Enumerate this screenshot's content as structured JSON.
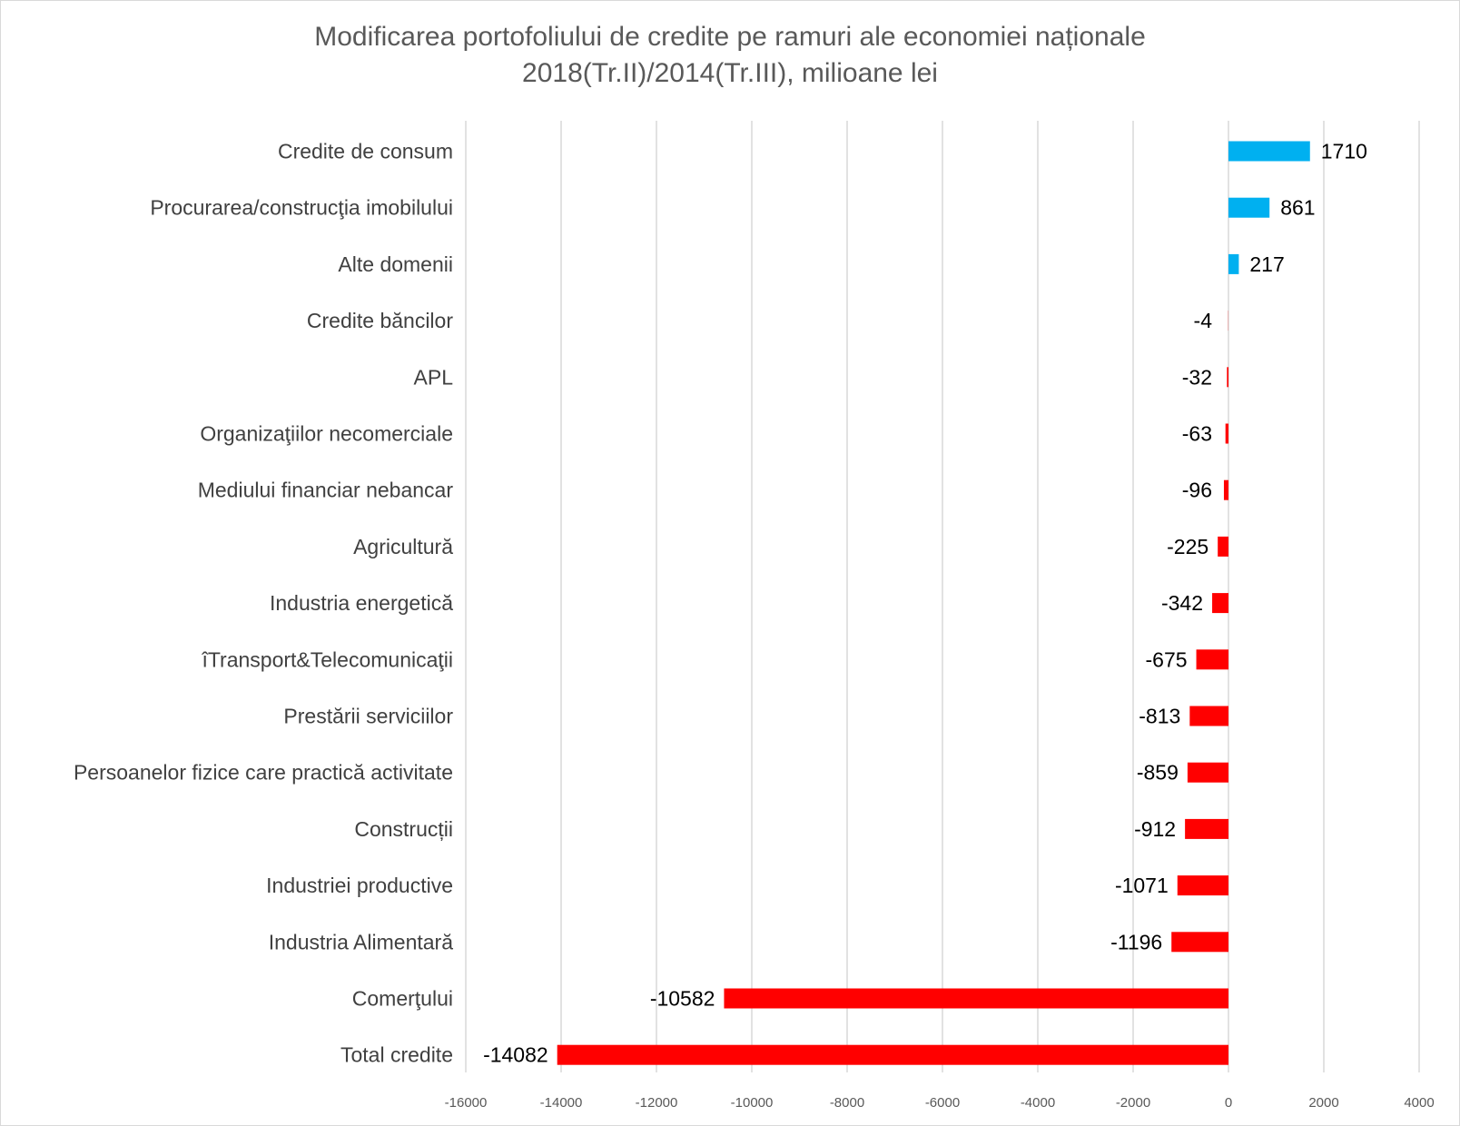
{
  "chart_data": {
    "type": "bar",
    "orientation": "horizontal",
    "title": "Modificarea portofoliului de credite pe ramuri ale economiei naționale",
    "subtitle": "2018(Tr.II)/2014(Tr.III), milioane lei",
    "categories": [
      "Credite de consum",
      "Procurarea/construcţia imobilului",
      "Alte domenii",
      "Credite băncilor",
      "APL",
      "Organizaţiilor necomerciale",
      "Mediului financiar nebancar",
      "Agricultură",
      "Industria energetică",
      "îTransport&Telecomunicaţii",
      "Prestării serviciilor",
      "Persoanelor fizice care practică activitate",
      "Construcții",
      "Industriei productive",
      "Industria Alimentară",
      "Comerţului",
      "Total credite"
    ],
    "values": [
      1710,
      861,
      217,
      -4,
      -32,
      -63,
      -96,
      -225,
      -342,
      -675,
      -813,
      -859,
      -912,
      -1071,
      -1196,
      -10582,
      -14082
    ],
    "xlim": [
      -16000,
      4000
    ],
    "xticks": [
      -16000,
      -14000,
      -12000,
      -10000,
      -8000,
      -6000,
      -4000,
      -2000,
      0,
      2000,
      4000
    ],
    "colors": {
      "positive": "#00b0f0",
      "negative": "#ff0000",
      "grid": "#d9d9d9"
    },
    "grid": true,
    "legend": "none"
  }
}
